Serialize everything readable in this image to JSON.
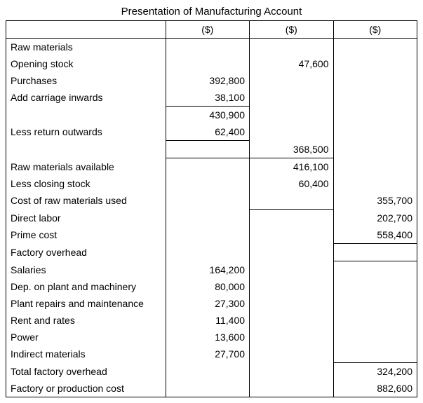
{
  "title": "Presentation of Manufacturing Account",
  "currency": "($)",
  "rows": [
    {
      "label": "Raw materials",
      "c1": "",
      "c2": "",
      "c3": ""
    },
    {
      "label": "Opening stock",
      "c1": "",
      "c2": "47,600",
      "c3": ""
    },
    {
      "label": "Purchases",
      "c1": "392,800",
      "c2": "",
      "c3": ""
    },
    {
      "label": "Add carriage inwards",
      "c1": "38,100",
      "c2": "",
      "c3": ""
    },
    {
      "label": "",
      "c1": "430,900",
      "c2": "",
      "c3": ""
    },
    {
      "label": "Less return outwards",
      "c1": "62,400",
      "c2": "",
      "c3": ""
    },
    {
      "label": "",
      "c1": "",
      "c2": "368,500",
      "c3": ""
    },
    {
      "label": "Raw materials available",
      "c1": "",
      "c2": "416,100",
      "c3": ""
    },
    {
      "label": "Less closing stock",
      "c1": "",
      "c2": "60,400",
      "c3": ""
    },
    {
      "label": "Cost of raw materials used",
      "c1": "",
      "c2": "",
      "c3": "355,700"
    },
    {
      "label": "Direct labor",
      "c1": "",
      "c2": "",
      "c3": "202,700"
    },
    {
      "label": "Prime cost",
      "c1": "",
      "c2": "",
      "c3": "558,400"
    },
    {
      "label": "Factory overhead",
      "c1": "",
      "c2": "",
      "c3": ""
    },
    {
      "label": "Salaries",
      "c1": "164,200",
      "c2": "",
      "c3": ""
    },
    {
      "label": "Dep. on plant and machinery",
      "c1": "80,000",
      "c2": "",
      "c3": ""
    },
    {
      "label": "Plant repairs and maintenance",
      "c1": "27,300",
      "c2": "",
      "c3": ""
    },
    {
      "label": "Rent and rates",
      "c1": "11,400",
      "c2": "",
      "c3": ""
    },
    {
      "label": "Power",
      "c1": "13,600",
      "c2": "",
      "c3": ""
    },
    {
      "label": "Indirect materials",
      "c1": "27,700",
      "c2": "",
      "c3": ""
    },
    {
      "label": "Total factory overhead",
      "c1": "",
      "c2": "",
      "c3": "324,200"
    },
    {
      "label": "Factory or production cost",
      "c1": "",
      "c2": "",
      "c3": "882,600"
    }
  ],
  "style": {
    "border_color": "#000000",
    "text_color": "#000000",
    "background_color": "#ffffff",
    "font_family": "Arial",
    "font_size": 14,
    "c1_borders": {
      "4": "bt",
      "5": "",
      "6": "bt bb"
    },
    "c2_borders": {
      "7": "bt",
      "9": "bb"
    },
    "c3_borders": {
      "11": "bb",
      "12": "bb",
      "19": "bt"
    }
  }
}
